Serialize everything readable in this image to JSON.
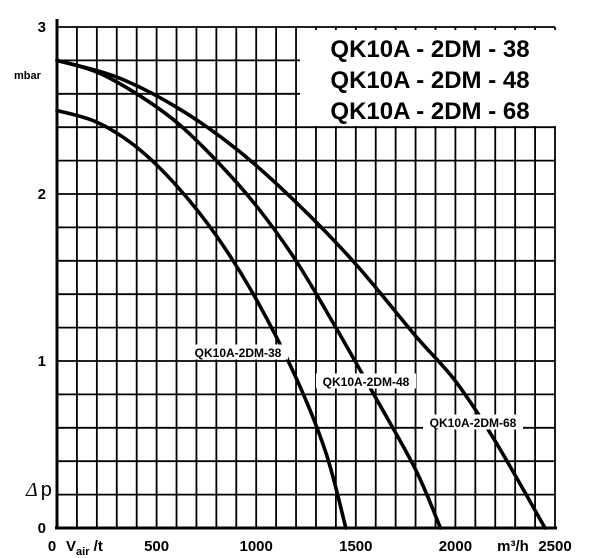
{
  "chart_data": {
    "type": "line",
    "title": [
      "QK10A - 2DM - 38",
      "QK10A - 2DM - 48",
      "QK10A - 2DM - 68"
    ],
    "xlabel": "V",
    "xlabel_sub": "air",
    "xlabel_suffix": " /t",
    "xunit": "m³/h",
    "ylabel": "Δ",
    "ylabel_suffix": "p",
    "yunit": "mbar",
    "xlim": [
      0,
      2500
    ],
    "ylim": [
      0,
      3
    ],
    "xticks": [
      "0",
      "500",
      "1000",
      "1500",
      "2000",
      "2500"
    ],
    "xtick_values": [
      0,
      500,
      1000,
      1500,
      2000,
      2500
    ],
    "yticks": [
      "0",
      "1",
      "2",
      "3"
    ],
    "ytick_values": [
      0,
      1,
      2,
      3
    ],
    "grid": true,
    "series": [
      {
        "name": "QK10A-2DM-38",
        "x": [
          0,
          200,
          400,
          600,
          800,
          1000,
          1200,
          1350,
          1450
        ],
        "y": [
          2.5,
          2.43,
          2.28,
          2.05,
          1.75,
          1.37,
          0.9,
          0.45,
          0
        ]
      },
      {
        "name": "QK10A-2DM-48",
        "x": [
          0,
          200,
          400,
          600,
          800,
          1000,
          1200,
          1400,
          1600,
          1800,
          1925
        ],
        "y": [
          2.8,
          2.73,
          2.6,
          2.43,
          2.2,
          1.93,
          1.6,
          1.2,
          0.78,
          0.35,
          0
        ]
      },
      {
        "name": "QK10A-2DM-68",
        "x": [
          0,
          300,
          600,
          900,
          1200,
          1500,
          1800,
          2000,
          2200,
          2450
        ],
        "y": [
          2.8,
          2.7,
          2.52,
          2.27,
          1.95,
          1.58,
          1.15,
          0.88,
          0.52,
          0
        ]
      }
    ]
  }
}
